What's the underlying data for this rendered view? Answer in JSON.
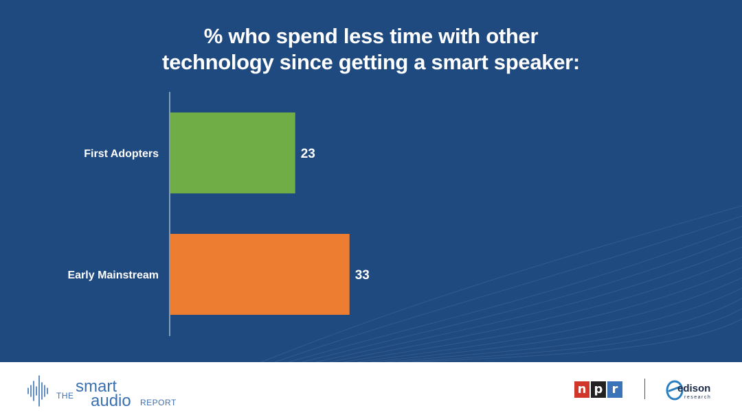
{
  "slide": {
    "title_line1": "% who spend less time with other",
    "title_line2": "technology since getting a smart speaker:",
    "background_color": "#1f4a80"
  },
  "chart_data": {
    "type": "bar",
    "orientation": "horizontal",
    "title": "% who spend less time with other technology since getting a smart speaker:",
    "categories": [
      "First Adopters",
      "Early Mainstream"
    ],
    "values": [
      23,
      33
    ],
    "colors": [
      "#70ad47",
      "#ed7d31"
    ],
    "data_labels": [
      "23",
      "33"
    ],
    "xlim": [
      0,
      100
    ],
    "grid": false,
    "legend": "none"
  },
  "footer": {
    "brand": {
      "the": "THE",
      "smart": "smart",
      "audio": "audio",
      "report": "REPORT",
      "icon": "soundwave-icon"
    },
    "npr": {
      "n": "n",
      "p": "p",
      "r": "r"
    },
    "edison": {
      "word": "edison",
      "sub": "research",
      "icon": "edison-e-icon"
    }
  }
}
